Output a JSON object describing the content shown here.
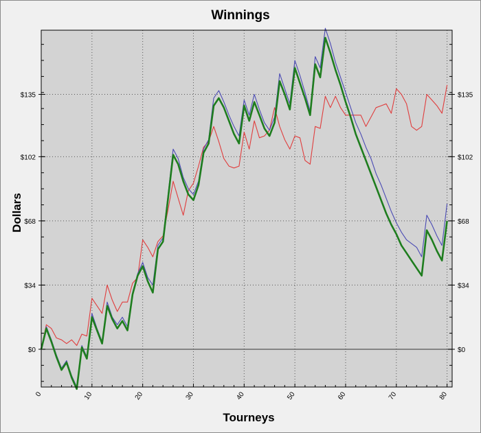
{
  "chart_data": {
    "type": "line",
    "title": "Winnings",
    "xlabel": "Tourneys",
    "ylabel": "Dollars",
    "xlim": [
      0,
      81
    ],
    "ylim": [
      -20,
      169
    ],
    "x_ticks": [
      0,
      10,
      20,
      30,
      40,
      50,
      60,
      70,
      80
    ],
    "x_tick_labels": [
      "0",
      "10",
      "20",
      "30",
      "40",
      "50",
      "60",
      "70",
      "80"
    ],
    "y_ticks": [
      0,
      34,
      68,
      102,
      135
    ],
    "y_tick_labels": [
      "$0",
      "$34",
      "$68",
      "$102",
      "$135"
    ],
    "grid": true,
    "x": [
      0,
      1,
      2,
      3,
      4,
      5,
      6,
      7,
      8,
      9,
      10,
      11,
      12,
      13,
      14,
      15,
      16,
      17,
      18,
      19,
      20,
      21,
      22,
      23,
      24,
      25,
      26,
      27,
      28,
      29,
      30,
      31,
      32,
      33,
      34,
      35,
      36,
      37,
      38,
      39,
      40,
      41,
      42,
      43,
      44,
      45,
      46,
      47,
      48,
      49,
      50,
      51,
      52,
      53,
      54,
      55,
      56,
      57,
      58,
      59,
      60,
      61,
      62,
      63,
      64,
      65,
      66,
      67,
      68,
      69,
      70,
      71,
      72,
      73,
      74,
      75,
      76,
      77,
      78,
      79,
      80
    ],
    "series": [
      {
        "color": "#e03c3c",
        "values": [
          0,
          13,
          11,
          6,
          5,
          3,
          5,
          2,
          8,
          7,
          27,
          23,
          19,
          34,
          26,
          20,
          25,
          25,
          35,
          38,
          58,
          54,
          49,
          57,
          60,
          74,
          89,
          80,
          71,
          84,
          88,
          97,
          107,
          110,
          118,
          110,
          101,
          97,
          96,
          97,
          115,
          106,
          121,
          112,
          113,
          116,
          128,
          118,
          111,
          106,
          113,
          112,
          100,
          98,
          118,
          117,
          134,
          128,
          134,
          128,
          124,
          124,
          124,
          124,
          118,
          123,
          128,
          129,
          130,
          125,
          138,
          135,
          130,
          118,
          116,
          118,
          135,
          132,
          129,
          125,
          140
        ]
      },
      {
        "color": "#4a4ab4",
        "values": [
          0,
          12,
          5,
          -3,
          -10,
          -6,
          -14,
          -20,
          2,
          -4,
          19,
          11,
          4,
          25,
          17,
          13,
          17,
          12,
          30,
          40,
          46,
          38,
          34,
          55,
          59,
          82,
          106,
          101,
          91,
          85,
          82,
          89,
          106,
          111,
          133,
          137,
          131,
          124,
          118,
          113,
          132,
          124,
          135,
          127,
          120,
          116,
          123,
          146,
          138,
          130,
          153,
          145,
          136,
          126,
          155,
          149,
          170,
          162,
          152,
          144,
          136,
          128,
          120,
          114,
          107,
          101,
          93,
          87,
          80,
          73,
          67,
          62,
          58,
          56,
          54,
          49,
          71,
          66,
          60,
          55,
          77
        ]
      },
      {
        "color": "#1e7d1e",
        "values": [
          0,
          11,
          4,
          -4,
          -11,
          -7,
          -15,
          -21,
          1,
          -5,
          17,
          10,
          3,
          23,
          16,
          11,
          15,
          10,
          29,
          39,
          44,
          36,
          30,
          53,
          57,
          80,
          103,
          98,
          89,
          82,
          79,
          87,
          104,
          109,
          129,
          133,
          128,
          121,
          114,
          109,
          129,
          121,
          131,
          124,
          117,
          113,
          120,
          142,
          135,
          127,
          149,
          141,
          133,
          124,
          151,
          144,
          165,
          157,
          148,
          140,
          131,
          123,
          114,
          107,
          100,
          93,
          86,
          79,
          72,
          66,
          61,
          55,
          51,
          47,
          43,
          39,
          63,
          58,
          52,
          47,
          68
        ]
      }
    ]
  }
}
